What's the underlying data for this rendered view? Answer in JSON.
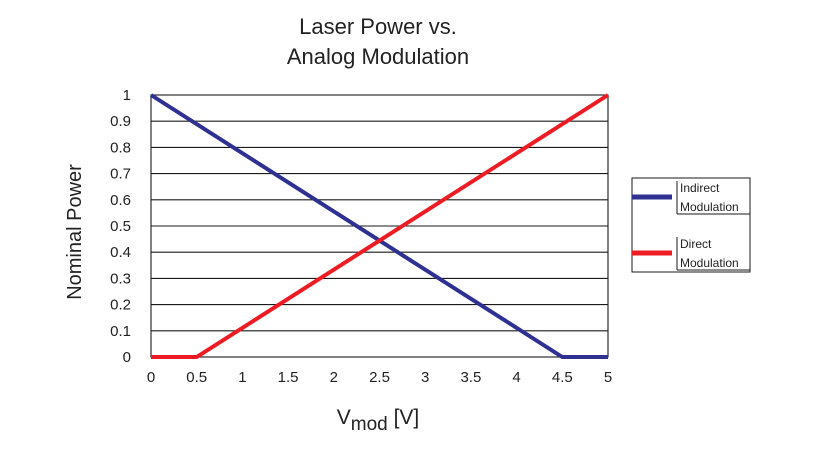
{
  "chart_data": {
    "type": "line",
    "title_lines": [
      "Laser Power vs.",
      "Analog Modulation"
    ],
    "ylabel": "Nominal Power",
    "xlabel": {
      "main": "V",
      "subscript": "mod",
      "unit": " [V]"
    },
    "xlim": [
      0,
      5
    ],
    "ylim": [
      0,
      1
    ],
    "x_ticks": [
      "0",
      "0.5",
      "1",
      "1.5",
      "2",
      "2.5",
      "3",
      "3.5",
      "4",
      "4.5",
      "5"
    ],
    "x_tick_values": [
      0,
      0.5,
      1,
      1.5,
      2,
      2.5,
      3,
      3.5,
      4,
      4.5,
      5
    ],
    "y_ticks": [
      "0",
      "0.1",
      "0.2",
      "0.3",
      "0.4",
      "0.5",
      "0.6",
      "0.7",
      "0.8",
      "0.9",
      "1"
    ],
    "y_tick_values": [
      0,
      0.1,
      0.2,
      0.3,
      0.4,
      0.5,
      0.6,
      0.7,
      0.8,
      0.9,
      1
    ],
    "grid": "horizontal",
    "legend_position": "right",
    "series": [
      {
        "name_lines": [
          "Indirect",
          "Modulation"
        ],
        "color": "#2e3192",
        "points": [
          [
            0,
            1
          ],
          [
            4.5,
            0
          ],
          [
            5,
            0
          ]
        ]
      },
      {
        "name_lines": [
          "Direct",
          "Modulation"
        ],
        "color": "#ed1c24",
        "points": [
          [
            0,
            0
          ],
          [
            0.5,
            0
          ],
          [
            5,
            1
          ]
        ]
      }
    ]
  }
}
